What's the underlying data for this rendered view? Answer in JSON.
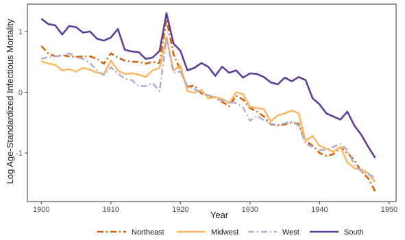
{
  "chart_data": {
    "type": "line",
    "title": "",
    "xlabel": "Year",
    "ylabel": "Log Age-Standardized Infectious Mortality",
    "xlim": [
      1898,
      1951
    ],
    "ylim": [
      -1.8,
      1.45
    ],
    "x_ticks": [
      1900,
      1910,
      1920,
      1930,
      1940,
      1950
    ],
    "y_ticks": [
      -1,
      0,
      1
    ],
    "grid": false,
    "legend_position": "bottom",
    "x": [
      1900,
      1901,
      1902,
      1903,
      1904,
      1905,
      1906,
      1907,
      1908,
      1909,
      1910,
      1911,
      1912,
      1913,
      1914,
      1915,
      1916,
      1917,
      1918,
      1919,
      1920,
      1921,
      1922,
      1923,
      1924,
      1925,
      1926,
      1927,
      1928,
      1929,
      1930,
      1931,
      1932,
      1933,
      1934,
      1935,
      1936,
      1937,
      1938,
      1939,
      1940,
      1941,
      1942,
      1943,
      1944,
      1945,
      1946,
      1947,
      1948
    ],
    "series": [
      {
        "name": "Northeast",
        "color": "#d95f02",
        "dash": "9,4,2,4",
        "values": [
          0.76,
          0.64,
          0.59,
          0.61,
          0.59,
          0.58,
          0.59,
          0.59,
          0.55,
          0.47,
          0.64,
          0.57,
          0.52,
          0.5,
          0.5,
          0.47,
          0.5,
          0.48,
          1.2,
          0.63,
          0.36,
          0.09,
          0.11,
          -0.02,
          -0.06,
          -0.09,
          -0.16,
          -0.23,
          -0.06,
          -0.12,
          -0.26,
          -0.32,
          -0.4,
          -0.53,
          -0.55,
          -0.53,
          -0.5,
          -0.52,
          -0.8,
          -0.88,
          -1.0,
          -1.05,
          -1.02,
          -0.9,
          -1.0,
          -1.12,
          -1.3,
          -1.42,
          -1.63
        ]
      },
      {
        "name": "Midwest",
        "color": "#fdb863",
        "dash": "",
        "values": [
          0.51,
          0.47,
          0.45,
          0.36,
          0.38,
          0.34,
          0.4,
          0.37,
          0.32,
          0.3,
          0.52,
          0.36,
          0.3,
          0.31,
          0.29,
          0.25,
          0.36,
          0.4,
          0.91,
          0.36,
          0.44,
          0.02,
          -0.01,
          0.04,
          -0.1,
          -0.08,
          -0.11,
          -0.18,
          0.0,
          -0.03,
          -0.24,
          -0.26,
          -0.28,
          -0.48,
          -0.38,
          -0.35,
          -0.3,
          -0.35,
          -0.8,
          -0.72,
          -0.88,
          -0.93,
          -0.98,
          -0.9,
          -1.15,
          -1.25,
          -1.27,
          -1.33,
          -1.48
        ]
      },
      {
        "name": "West",
        "color": "#b2abd2",
        "dash": "9,4,2,4",
        "values": [
          0.55,
          0.58,
          0.59,
          0.6,
          0.64,
          0.58,
          0.55,
          0.48,
          0.36,
          0.28,
          0.41,
          0.31,
          0.22,
          0.2,
          0.1,
          0.1,
          0.15,
          0.02,
          0.9,
          0.32,
          0.34,
          0.1,
          0.05,
          0.0,
          -0.05,
          -0.08,
          -0.14,
          -0.16,
          -0.18,
          -0.25,
          -0.47,
          -0.39,
          -0.46,
          -0.52,
          -0.54,
          -0.51,
          -0.48,
          -0.55,
          -0.85,
          -0.9,
          -0.95,
          -0.95,
          -0.9,
          -0.85,
          -0.95,
          -1.2,
          -1.3,
          -1.35,
          -1.4
        ]
      },
      {
        "name": "South",
        "color": "#5e3c99",
        "dash": "",
        "values": [
          1.21,
          1.12,
          1.1,
          0.95,
          1.09,
          1.07,
          0.98,
          1.0,
          0.88,
          0.85,
          0.9,
          1.04,
          0.7,
          0.67,
          0.66,
          0.55,
          0.57,
          0.68,
          1.3,
          0.8,
          0.68,
          0.36,
          0.4,
          0.48,
          0.42,
          0.27,
          0.42,
          0.32,
          0.36,
          0.24,
          0.31,
          0.3,
          0.25,
          0.16,
          0.13,
          0.24,
          0.18,
          0.25,
          0.2,
          -0.1,
          -0.2,
          -0.35,
          -0.4,
          -0.45,
          -0.32,
          -0.55,
          -0.7,
          -0.9,
          -1.08
        ]
      }
    ]
  }
}
